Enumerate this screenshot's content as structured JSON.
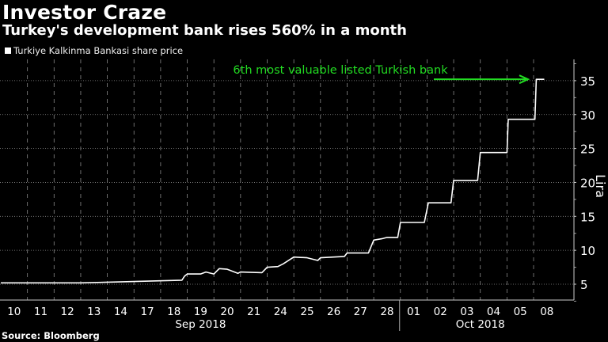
{
  "title": "Investor Craze",
  "subtitle": "Turkey's development bank rises 560% in a month",
  "source": "Source: Bloomberg",
  "colors": {
    "line": "#ffffff",
    "annotation": "#22dd22",
    "grid": "#888888",
    "background": "#000000"
  },
  "chart_data": {
    "type": "line",
    "legend": [
      "Turkiye Kalkinma Bankasi share price"
    ],
    "legend_placement": "top-left",
    "categories": [
      "10",
      "11",
      "12",
      "13",
      "14",
      "17",
      "18",
      "19",
      "20",
      "21",
      "24",
      "25",
      "26",
      "27",
      "28",
      "01",
      "02",
      "03",
      "04",
      "05",
      "08"
    ],
    "months": [
      {
        "label": "Sep 2018",
        "from": 0,
        "to": 14
      },
      {
        "label": "Oct 2018",
        "from": 15,
        "to": 20
      }
    ],
    "ylabel": "Lira",
    "yticks": [
      5,
      10,
      15,
      20,
      25,
      30,
      35
    ],
    "ylim": [
      2.5,
      38
    ],
    "grid": true,
    "annotation": {
      "text": "6th most valuable listed Turkish bank",
      "at_value": 35.2
    },
    "series": [
      {
        "name": "Turkiye Kalkinma Bankasi share price",
        "points": [
          [
            0,
            5.2
          ],
          [
            3,
            5.2
          ],
          [
            5,
            5.4
          ],
          [
            6.8,
            5.6
          ],
          [
            6.9,
            6.2
          ],
          [
            7,
            6.5
          ],
          [
            7.5,
            6.5
          ],
          [
            7.7,
            6.8
          ],
          [
            8,
            6.5
          ],
          [
            8.2,
            7.3
          ],
          [
            8.5,
            7.2
          ],
          [
            8.9,
            6.6
          ],
          [
            9,
            6.8
          ],
          [
            9.8,
            6.7
          ],
          [
            10,
            7.5
          ],
          [
            10.4,
            7.6
          ],
          [
            10.6,
            8.0
          ],
          [
            11,
            9.0
          ],
          [
            11.5,
            8.9
          ],
          [
            11.9,
            8.5
          ],
          [
            12,
            8.9
          ],
          [
            12.9,
            9.1
          ],
          [
            13,
            9.6
          ],
          [
            13.8,
            9.6
          ],
          [
            14,
            11.5
          ],
          [
            14.3,
            11.7
          ],
          [
            14.5,
            11.9
          ],
          [
            14.9,
            11.9
          ],
          [
            15,
            14.1
          ],
          [
            15.9,
            14.1
          ],
          [
            16.05,
            17.0
          ],
          [
            16.9,
            17.0
          ],
          [
            17,
            20.3
          ],
          [
            17.9,
            20.3
          ],
          [
            18,
            24.4
          ],
          [
            19,
            24.4
          ],
          [
            19.05,
            29.3
          ],
          [
            20.05,
            29.3
          ],
          [
            20.1,
            35.2
          ],
          [
            20.4,
            35.2
          ]
        ]
      }
    ]
  }
}
